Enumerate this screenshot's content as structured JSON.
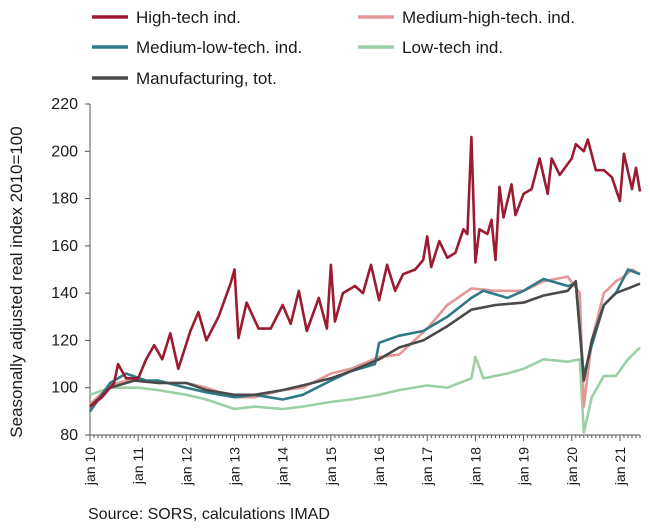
{
  "chart_data": {
    "type": "line",
    "ylabel": "Seasonally adjusted real index 2010=100",
    "source": "Source: SORS, calculations IMAD",
    "ylim": [
      80,
      220
    ],
    "y_ticks": [
      80,
      100,
      120,
      140,
      160,
      180,
      200,
      220
    ],
    "xlim": [
      "2010-01",
      "2021-06"
    ],
    "x_ticks": [
      {
        "label": "jan 10",
        "date": "2010-01"
      },
      {
        "label": "jan 11",
        "date": "2011-01"
      },
      {
        "label": "jan 12",
        "date": "2012-01"
      },
      {
        "label": "jan 13",
        "date": "2013-01"
      },
      {
        "label": "jan 14",
        "date": "2014-01"
      },
      {
        "label": "jan 15",
        "date": "2015-01"
      },
      {
        "label": "jan 16",
        "date": "2016-01"
      },
      {
        "label": "jan 17",
        "date": "2017-01"
      },
      {
        "label": "jan 18",
        "date": "2018-01"
      },
      {
        "label": "jan 19",
        "date": "2019-01"
      },
      {
        "label": "jan 20",
        "date": "2020-01"
      },
      {
        "label": "jan 21",
        "date": "2021-01"
      }
    ],
    "grid": false,
    "legend_position": "top",
    "series": [
      {
        "name": "High-tech ind.",
        "color": "#9b1b30",
        "points": [
          [
            "2010-01",
            92
          ],
          [
            "2010-04",
            96
          ],
          [
            "2010-07",
            102
          ],
          [
            "2010-08",
            110
          ],
          [
            "2010-10",
            104
          ],
          [
            "2011-01",
            104
          ],
          [
            "2011-03",
            112
          ],
          [
            "2011-05",
            118
          ],
          [
            "2011-07",
            112
          ],
          [
            "2011-09",
            123
          ],
          [
            "2011-11",
            108
          ],
          [
            "2012-02",
            124
          ],
          [
            "2012-04",
            132
          ],
          [
            "2012-06",
            120
          ],
          [
            "2012-09",
            130
          ],
          [
            "2012-12",
            144
          ],
          [
            "2013-01",
            150
          ],
          [
            "2013-02",
            121
          ],
          [
            "2013-04",
            136
          ],
          [
            "2013-07",
            125
          ],
          [
            "2013-10",
            125
          ],
          [
            "2014-01",
            135
          ],
          [
            "2014-03",
            127
          ],
          [
            "2014-05",
            141
          ],
          [
            "2014-07",
            124
          ],
          [
            "2014-10",
            138
          ],
          [
            "2014-12",
            125
          ],
          [
            "2015-01",
            152
          ],
          [
            "2015-02",
            128
          ],
          [
            "2015-04",
            140
          ],
          [
            "2015-07",
            143
          ],
          [
            "2015-09",
            140
          ],
          [
            "2015-11",
            152
          ],
          [
            "2016-01",
            137
          ],
          [
            "2016-03",
            152
          ],
          [
            "2016-05",
            141
          ],
          [
            "2016-07",
            148
          ],
          [
            "2016-10",
            150
          ],
          [
            "2016-12",
            154
          ],
          [
            "2017-01",
            164
          ],
          [
            "2017-02",
            151
          ],
          [
            "2017-04",
            162
          ],
          [
            "2017-06",
            155
          ],
          [
            "2017-08",
            157
          ],
          [
            "2017-10",
            167
          ],
          [
            "2017-11",
            165
          ],
          [
            "2017-12",
            206
          ],
          [
            "2018-01",
            153
          ],
          [
            "2018-02",
            167
          ],
          [
            "2018-04",
            165
          ],
          [
            "2018-05",
            171
          ],
          [
            "2018-06",
            154
          ],
          [
            "2018-07",
            185
          ],
          [
            "2018-08",
            172
          ],
          [
            "2018-10",
            186
          ],
          [
            "2018-11",
            173
          ],
          [
            "2019-01",
            182
          ],
          [
            "2019-03",
            184
          ],
          [
            "2019-05",
            197
          ],
          [
            "2019-07",
            182
          ],
          [
            "2019-08",
            197
          ],
          [
            "2019-10",
            190
          ],
          [
            "2020-01",
            197
          ],
          [
            "2020-02",
            203
          ],
          [
            "2020-04",
            200
          ],
          [
            "2020-05",
            205
          ],
          [
            "2020-07",
            192
          ],
          [
            "2020-09",
            192
          ],
          [
            "2020-11",
            189
          ],
          [
            "2021-01",
            179
          ],
          [
            "2021-02",
            199
          ],
          [
            "2021-04",
            184
          ],
          [
            "2021-05",
            193
          ],
          [
            "2021-06",
            183
          ]
        ]
      },
      {
        "name": "Medium-high-tech. ind.",
        "color": "#e39898",
        "points": [
          [
            "2010-01",
            93
          ],
          [
            "2010-06",
            101
          ],
          [
            "2010-12",
            104
          ],
          [
            "2011-06",
            102
          ],
          [
            "2012-01",
            102
          ],
          [
            "2012-06",
            100
          ],
          [
            "2013-01",
            96
          ],
          [
            "2013-06",
            96
          ],
          [
            "2014-01",
            99
          ],
          [
            "2014-06",
            100
          ],
          [
            "2015-01",
            106
          ],
          [
            "2015-06",
            108
          ],
          [
            "2016-01",
            113
          ],
          [
            "2016-06",
            114
          ],
          [
            "2017-01",
            125
          ],
          [
            "2017-06",
            135
          ],
          [
            "2017-12",
            142
          ],
          [
            "2018-06",
            141
          ],
          [
            "2019-01",
            141
          ],
          [
            "2019-06",
            145
          ],
          [
            "2019-12",
            147
          ],
          [
            "2020-03",
            140
          ],
          [
            "2020-04",
            92
          ],
          [
            "2020-06",
            120
          ],
          [
            "2020-09",
            140
          ],
          [
            "2020-12",
            145
          ],
          [
            "2021-02",
            147
          ],
          [
            "2021-04",
            150
          ],
          [
            "2021-06",
            148
          ]
        ]
      },
      {
        "name": "Medium-low-tech. ind.",
        "color": "#2f7a86",
        "points": [
          [
            "2010-01",
            90
          ],
          [
            "2010-06",
            102
          ],
          [
            "2010-10",
            106
          ],
          [
            "2011-03",
            103
          ],
          [
            "2011-06",
            103
          ],
          [
            "2012-01",
            100
          ],
          [
            "2012-06",
            98
          ],
          [
            "2013-01",
            96
          ],
          [
            "2013-06",
            97
          ],
          [
            "2014-01",
            95
          ],
          [
            "2014-06",
            97
          ],
          [
            "2015-01",
            103
          ],
          [
            "2015-06",
            107
          ],
          [
            "2015-12",
            110
          ],
          [
            "2016-01",
            119
          ],
          [
            "2016-06",
            122
          ],
          [
            "2016-12",
            124
          ],
          [
            "2017-06",
            130
          ],
          [
            "2017-12",
            138
          ],
          [
            "2018-03",
            141
          ],
          [
            "2018-09",
            138
          ],
          [
            "2019-01",
            141
          ],
          [
            "2019-06",
            146
          ],
          [
            "2019-12",
            143
          ],
          [
            "2020-02",
            144
          ],
          [
            "2020-04",
            105
          ],
          [
            "2020-06",
            118
          ],
          [
            "2020-09",
            135
          ],
          [
            "2020-12",
            140
          ],
          [
            "2021-03",
            150
          ],
          [
            "2021-06",
            148
          ]
        ]
      },
      {
        "name": "Low-tech ind.",
        "color": "#9dcfa6",
        "points": [
          [
            "2010-01",
            97
          ],
          [
            "2010-06",
            100
          ],
          [
            "2011-01",
            100
          ],
          [
            "2011-06",
            99
          ],
          [
            "2012-01",
            97
          ],
          [
            "2012-06",
            95
          ],
          [
            "2013-01",
            91
          ],
          [
            "2013-06",
            92
          ],
          [
            "2014-01",
            91
          ],
          [
            "2014-06",
            92
          ],
          [
            "2015-01",
            94
          ],
          [
            "2015-06",
            95
          ],
          [
            "2016-01",
            97
          ],
          [
            "2016-06",
            99
          ],
          [
            "2017-01",
            101
          ],
          [
            "2017-06",
            100
          ],
          [
            "2017-12",
            104
          ],
          [
            "2018-01",
            113
          ],
          [
            "2018-03",
            104
          ],
          [
            "2018-09",
            106
          ],
          [
            "2019-01",
            108
          ],
          [
            "2019-06",
            112
          ],
          [
            "2019-12",
            111
          ],
          [
            "2020-03",
            112
          ],
          [
            "2020-04",
            81
          ],
          [
            "2020-06",
            96
          ],
          [
            "2020-09",
            105
          ],
          [
            "2020-12",
            105
          ],
          [
            "2021-03",
            112
          ],
          [
            "2021-06",
            117
          ]
        ]
      },
      {
        "name": "Manufacturing, tot.",
        "color": "#4a4a4a",
        "points": [
          [
            "2010-01",
            92
          ],
          [
            "2010-06",
            100
          ],
          [
            "2010-12",
            103
          ],
          [
            "2011-06",
            102
          ],
          [
            "2012-01",
            102
          ],
          [
            "2012-06",
            99
          ],
          [
            "2013-01",
            97
          ],
          [
            "2013-06",
            97
          ],
          [
            "2014-01",
            99
          ],
          [
            "2014-06",
            101
          ],
          [
            "2015-01",
            104
          ],
          [
            "2015-06",
            107
          ],
          [
            "2016-01",
            112
          ],
          [
            "2016-06",
            117
          ],
          [
            "2016-12",
            120
          ],
          [
            "2017-06",
            126
          ],
          [
            "2017-12",
            133
          ],
          [
            "2018-06",
            135
          ],
          [
            "2019-01",
            136
          ],
          [
            "2019-06",
            139
          ],
          [
            "2019-12",
            141
          ],
          [
            "2020-02",
            145
          ],
          [
            "2020-04",
            103
          ],
          [
            "2020-06",
            120
          ],
          [
            "2020-09",
            135
          ],
          [
            "2020-12",
            140
          ],
          [
            "2021-03",
            142
          ],
          [
            "2021-06",
            144
          ]
        ]
      }
    ]
  }
}
